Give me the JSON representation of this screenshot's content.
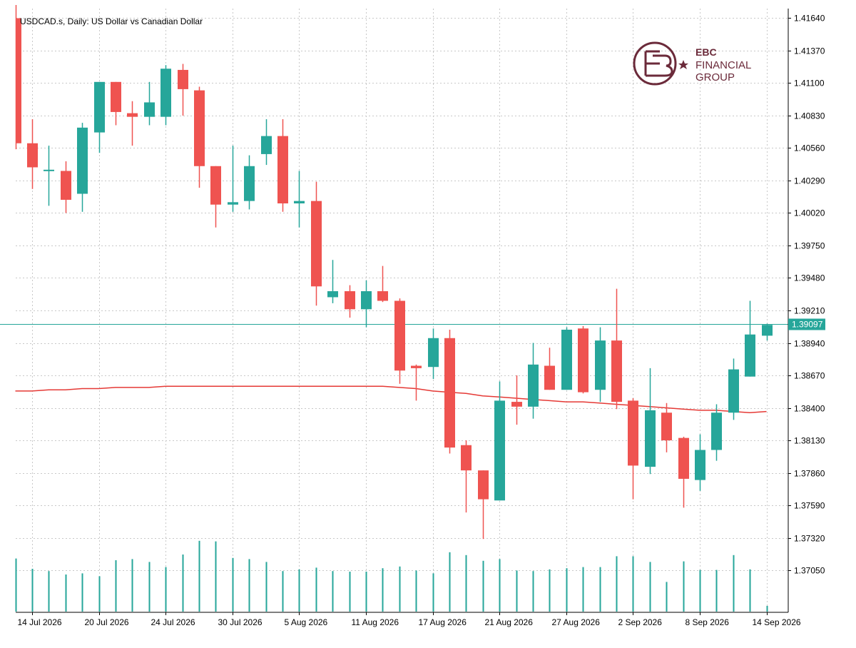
{
  "chart_data": {
    "type": "candlestick",
    "title": "USDCAD.s, Daily:  US Dollar vs Canadian Dollar",
    "symbol": "USDCAD.s",
    "timeframe": "Daily",
    "ylim": [
      1.367,
      1.4172
    ],
    "y_ticks": [
      "1.41640",
      "1.41370",
      "1.41100",
      "1.40830",
      "1.40560",
      "1.40290",
      "1.40020",
      "1.39750",
      "1.39480",
      "1.39210",
      "1.38940",
      "1.38670",
      "1.38400",
      "1.38130",
      "1.37860",
      "1.37590",
      "1.37320",
      "1.37050"
    ],
    "x_labels": [
      "14 Jul 2026",
      "20 Jul 2026",
      "24 Jul 2026",
      "30 Jul 2026",
      "5 Aug 2026",
      "11 Aug 2026",
      "17 Aug 2026",
      "21 Aug 2026",
      "27 Aug 2026",
      "2 Sep 2026",
      "8 Sep 2026",
      "14 Sep 2026"
    ],
    "x_label_candle_index": [
      1,
      5,
      9,
      13,
      17,
      21,
      25,
      29,
      33,
      37,
      41,
      45
    ],
    "current_price": 1.39097,
    "current_price_label": "1.39097",
    "colors": {
      "bull": "#26a69a",
      "bear": "#ef5350",
      "ma": "#e53935",
      "volume": "#26a69a",
      "price_line": "#26a69a",
      "axis": "#000000",
      "grid": "#c8c8c8"
    },
    "candles": [
      {
        "o": 1.4164,
        "h": 1.4175,
        "l": 1.4055,
        "c": 1.406
      },
      {
        "o": 1.406,
        "h": 1.408,
        "l": 1.4022,
        "c": 1.404
      },
      {
        "o": 1.4038,
        "h": 1.4058,
        "l": 1.4008,
        "c": 1.4038
      },
      {
        "o": 1.4037,
        "h": 1.4045,
        "l": 1.4002,
        "c": 1.4013
      },
      {
        "o": 1.4018,
        "h": 1.4077,
        "l": 1.4003,
        "c": 1.4073
      },
      {
        "o": 1.4069,
        "h": 1.4111,
        "l": 1.4052,
        "c": 1.4111
      },
      {
        "o": 1.4111,
        "h": 1.4111,
        "l": 1.4075,
        "c": 1.4086
      },
      {
        "o": 1.4085,
        "h": 1.4095,
        "l": 1.4058,
        "c": 1.4082
      },
      {
        "o": 1.4082,
        "h": 1.4111,
        "l": 1.4075,
        "c": 1.4094
      },
      {
        "o": 1.4082,
        "h": 1.4125,
        "l": 1.4075,
        "c": 1.4122
      },
      {
        "o": 1.4121,
        "h": 1.4126,
        "l": 1.4083,
        "c": 1.4105
      },
      {
        "o": 1.4104,
        "h": 1.4107,
        "l": 1.4023,
        "c": 1.4041
      },
      {
        "o": 1.4041,
        "h": 1.4041,
        "l": 1.399,
        "c": 1.4009
      },
      {
        "o": 1.4009,
        "h": 1.4058,
        "l": 1.4003,
        "c": 1.4011
      },
      {
        "o": 1.4012,
        "h": 1.405,
        "l": 1.4005,
        "c": 1.4041
      },
      {
        "o": 1.4051,
        "h": 1.408,
        "l": 1.4042,
        "c": 1.4066
      },
      {
        "o": 1.4066,
        "h": 1.408,
        "l": 1.4003,
        "c": 1.401
      },
      {
        "o": 1.401,
        "h": 1.4037,
        "l": 1.399,
        "c": 1.4012
      },
      {
        "o": 1.4012,
        "h": 1.4028,
        "l": 1.3925,
        "c": 1.3941
      },
      {
        "o": 1.3932,
        "h": 1.3963,
        "l": 1.3927,
        "c": 1.3937
      },
      {
        "o": 1.3937,
        "h": 1.3942,
        "l": 1.3915,
        "c": 1.3922
      },
      {
        "o": 1.3922,
        "h": 1.3946,
        "l": 1.3907,
        "c": 1.3937
      },
      {
        "o": 1.3937,
        "h": 1.3958,
        "l": 1.3928,
        "c": 1.3929
      },
      {
        "o": 1.3929,
        "h": 1.3931,
        "l": 1.386,
        "c": 1.3871
      },
      {
        "o": 1.3875,
        "h": 1.3876,
        "l": 1.3846,
        "c": 1.3873
      },
      {
        "o": 1.3874,
        "h": 1.3906,
        "l": 1.3864,
        "c": 1.3898
      },
      {
        "o": 1.3898,
        "h": 1.3905,
        "l": 1.3802,
        "c": 1.3807
      },
      {
        "o": 1.3809,
        "h": 1.3813,
        "l": 1.3753,
        "c": 1.3788
      },
      {
        "o": 1.3788,
        "h": 1.3788,
        "l": 1.3731,
        "c": 1.3764
      },
      {
        "o": 1.3763,
        "h": 1.3862,
        "l": 1.3763,
        "c": 1.3846
      },
      {
        "o": 1.3845,
        "h": 1.3867,
        "l": 1.3826,
        "c": 1.3841
      },
      {
        "o": 1.3841,
        "h": 1.3894,
        "l": 1.3831,
        "c": 1.3876
      },
      {
        "o": 1.3875,
        "h": 1.389,
        "l": 1.3855,
        "c": 1.3855
      },
      {
        "o": 1.3855,
        "h": 1.3907,
        "l": 1.3855,
        "c": 1.3905
      },
      {
        "o": 1.3906,
        "h": 1.3908,
        "l": 1.3852,
        "c": 1.3853
      },
      {
        "o": 1.3855,
        "h": 1.3907,
        "l": 1.3845,
        "c": 1.3896
      },
      {
        "o": 1.3896,
        "h": 1.3939,
        "l": 1.3839,
        "c": 1.3845
      },
      {
        "o": 1.3846,
        "h": 1.3848,
        "l": 1.3764,
        "c": 1.3792
      },
      {
        "o": 1.3791,
        "h": 1.3873,
        "l": 1.3785,
        "c": 1.3838
      },
      {
        "o": 1.3836,
        "h": 1.3844,
        "l": 1.3803,
        "c": 1.3813
      },
      {
        "o": 1.3815,
        "h": 1.3816,
        "l": 1.3757,
        "c": 1.3781
      },
      {
        "o": 1.378,
        "h": 1.3818,
        "l": 1.3771,
        "c": 1.3805
      },
      {
        "o": 1.3805,
        "h": 1.3843,
        "l": 1.3796,
        "c": 1.3836
      },
      {
        "o": 1.3836,
        "h": 1.3881,
        "l": 1.383,
        "c": 1.3872
      },
      {
        "o": 1.3866,
        "h": 1.3929,
        "l": 1.3866,
        "c": 1.3901
      },
      {
        "o": 1.39,
        "h": 1.391,
        "l": 1.3896,
        "c": 1.3909
      }
    ],
    "ma": [
      1.3854,
      1.3854,
      1.3855,
      1.3855,
      1.3856,
      1.3856,
      1.3857,
      1.3857,
      1.3857,
      1.3858,
      1.3858,
      1.3858,
      1.3858,
      1.3858,
      1.3858,
      1.3858,
      1.3858,
      1.3858,
      1.3858,
      1.3858,
      1.3858,
      1.3858,
      1.3858,
      1.3857,
      1.3856,
      1.3854,
      1.3853,
      1.3852,
      1.385,
      1.3849,
      1.3848,
      1.3847,
      1.3846,
      1.3845,
      1.3845,
      1.3844,
      1.3843,
      1.3842,
      1.3841,
      1.384,
      1.3839,
      1.3838,
      1.3838,
      1.3837,
      1.3836,
      1.3837
    ],
    "volume": [
      0.93,
      0.75,
      0.71,
      0.65,
      0.67,
      0.62,
      0.9,
      0.92,
      0.87,
      0.78,
      1.0,
      1.24,
      1.23,
      0.94,
      0.92,
      0.87,
      0.71,
      0.74,
      0.77,
      0.71,
      0.7,
      0.7,
      0.76,
      0.79,
      0.72,
      0.67,
      1.04,
      0.99,
      0.89,
      0.92,
      0.72,
      0.71,
      0.74,
      0.76,
      0.78,
      0.78,
      0.97,
      0.97,
      0.87,
      0.52,
      0.88,
      0.73,
      0.73,
      0.99,
      0.74,
      0.1
    ]
  }
}
